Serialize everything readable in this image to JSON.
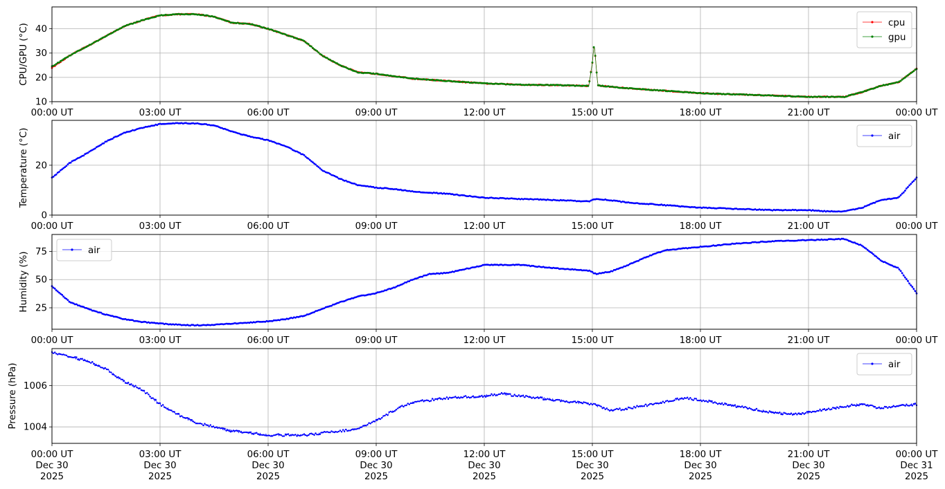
{
  "chart_data": [
    {
      "type": "line",
      "ylabel": "CPU/GPU (°C)",
      "ylim": [
        10,
        49
      ],
      "yticks": [
        10,
        20,
        30,
        40
      ],
      "xlim": [
        0,
        24
      ],
      "xticks": [
        0,
        3,
        6,
        9,
        12,
        15,
        18,
        21,
        24
      ],
      "xtick_labels": [
        "00:00 UT",
        "03:00 UT",
        "06:00 UT",
        "09:00 UT",
        "12:00 UT",
        "15:00 UT",
        "18:00 UT",
        "21:00 UT",
        "00:00 UT"
      ],
      "grid": true,
      "legend": "upper right",
      "series": [
        {
          "name": "cpu",
          "color": "#ff0000",
          "x": [
            0,
            0.5,
            1,
            1.5,
            2,
            2.5,
            3,
            3.5,
            4,
            4.5,
            5,
            5.5,
            6,
            6.5,
            7,
            7.5,
            8,
            8.5,
            9,
            9.5,
            10,
            11,
            12,
            13,
            14,
            14.9,
            15.0,
            15.05,
            15.15,
            15.25,
            16,
            17,
            18,
            19,
            20,
            21,
            21.5,
            22,
            22.5,
            23,
            23.5,
            24
          ],
          "y": [
            24,
            29,
            33,
            37,
            41,
            43.5,
            45.5,
            46,
            46,
            45,
            42.5,
            42,
            40,
            37.5,
            35,
            29,
            25,
            22,
            21.5,
            20.5,
            19.5,
            18.5,
            17.5,
            17,
            16.8,
            16.5,
            26,
            34,
            16.8,
            16.5,
            15.5,
            14.5,
            13.5,
            13,
            12.5,
            12,
            12,
            12,
            14,
            16.5,
            18,
            23.5
          ]
        },
        {
          "name": "gpu",
          "color": "#008000",
          "x": [
            0,
            0.5,
            1,
            1.5,
            2,
            2.5,
            3,
            3.5,
            4,
            4.5,
            5,
            5.5,
            6,
            6.5,
            7,
            7.5,
            8,
            8.5,
            9,
            9.5,
            10,
            11,
            12,
            13,
            14,
            14.9,
            15.0,
            15.05,
            15.15,
            15.25,
            16,
            17,
            18,
            19,
            20,
            21,
            21.5,
            22,
            22.5,
            23,
            23.5,
            24
          ],
          "y": [
            24.5,
            29,
            33,
            37,
            41,
            43.5,
            45.5,
            46,
            46,
            45,
            42.5,
            42,
            40,
            37.5,
            35,
            29,
            25,
            22,
            21.5,
            20.5,
            19.5,
            18.5,
            17.5,
            17,
            16.8,
            16.5,
            26,
            34,
            16.8,
            16.5,
            15.5,
            14.5,
            13.5,
            13,
            12.5,
            12,
            12,
            12,
            14,
            16.5,
            18,
            23.5
          ]
        }
      ]
    },
    {
      "type": "line",
      "ylabel": "Temperature (°C)",
      "ylim": [
        0,
        38
      ],
      "yticks": [
        0,
        20
      ],
      "xlim": [
        0,
        24
      ],
      "xticks": [
        0,
        3,
        6,
        9,
        12,
        15,
        18,
        21,
        24
      ],
      "xtick_labels": [
        "00:00 UT",
        "03:00 UT",
        "06:00 UT",
        "09:00 UT",
        "12:00 UT",
        "15:00 UT",
        "18:00 UT",
        "21:00 UT",
        "00:00 UT"
      ],
      "grid": true,
      "legend": "upper right",
      "series": [
        {
          "name": "air",
          "color": "#0000ff",
          "x": [
            0,
            0.5,
            1,
            1.5,
            2,
            2.5,
            3,
            3.5,
            4,
            4.5,
            5,
            5.5,
            6,
            6.5,
            7,
            7.5,
            8,
            8.5,
            9,
            9.5,
            10,
            11,
            12,
            13,
            14,
            14.9,
            15.1,
            15.5,
            16,
            17,
            18,
            19,
            20,
            21,
            21.5,
            22,
            22.5,
            23,
            23.5,
            24
          ],
          "y": [
            15,
            21,
            25,
            29.5,
            33,
            35,
            36.5,
            36.8,
            36.8,
            36,
            33.5,
            31.5,
            30,
            27.5,
            24,
            18,
            14.5,
            12,
            11,
            10.5,
            9.5,
            8.5,
            7,
            6.5,
            6,
            5.5,
            6.5,
            6,
            5,
            4,
            3,
            2.5,
            2,
            2,
            1.5,
            1.5,
            3,
            6,
            7,
            15
          ]
        }
      ]
    },
    {
      "type": "line",
      "ylabel": "Humidity (%)",
      "ylim": [
        6,
        90
      ],
      "yticks": [
        25,
        50,
        75
      ],
      "xlim": [
        0,
        24
      ],
      "xticks": [
        0,
        3,
        6,
        9,
        12,
        15,
        18,
        21,
        24
      ],
      "xtick_labels": [
        "00:00 UT",
        "03:00 UT",
        "06:00 UT",
        "09:00 UT",
        "12:00 UT",
        "15:00 UT",
        "18:00 UT",
        "21:00 UT",
        "00:00 UT"
      ],
      "grid": true,
      "legend": "upper left",
      "series": [
        {
          "name": "air",
          "color": "#0000ff",
          "x": [
            0,
            0.5,
            1,
            1.5,
            2,
            2.5,
            3,
            3.5,
            4,
            4.5,
            5,
            5.5,
            6,
            6.5,
            7,
            7.5,
            8,
            8.5,
            9,
            9.5,
            10,
            10.5,
            11,
            12,
            13,
            14,
            14.9,
            15.1,
            15.5,
            16,
            16.5,
            17,
            18,
            19,
            20,
            21,
            22,
            22.5,
            23,
            23.5,
            24
          ],
          "y": [
            44,
            30,
            24,
            19,
            15,
            12.5,
            11,
            10,
            9.5,
            10,
            11,
            12,
            13,
            15,
            18,
            24,
            30,
            35,
            38,
            43,
            50,
            55,
            56,
            63,
            63,
            60,
            58,
            55,
            57,
            63,
            70,
            76,
            79,
            82,
            84,
            85,
            86,
            80,
            67,
            60,
            38
          ]
        }
      ]
    },
    {
      "type": "line",
      "ylabel": "Pressure (hPa)",
      "ylim": [
        1003.2,
        1007.8
      ],
      "yticks": [
        1004,
        1006
      ],
      "xlim": [
        0,
        24
      ],
      "xticks": [
        0,
        3,
        6,
        9,
        12,
        15,
        18,
        21,
        24
      ],
      "xtick_labels": [
        [
          "00:00 UT",
          "Dec 30",
          "2025"
        ],
        [
          "03:00 UT",
          "Dec 30",
          "2025"
        ],
        [
          "06:00 UT",
          "Dec 30",
          "2025"
        ],
        [
          "09:00 UT",
          "Dec 30",
          "2025"
        ],
        [
          "12:00 UT",
          "Dec 30",
          "2025"
        ],
        [
          "15:00 UT",
          "Dec 30",
          "2025"
        ],
        [
          "18:00 UT",
          "Dec 30",
          "2025"
        ],
        [
          "21:00 UT",
          "Dec 30",
          "2025"
        ],
        [
          "00:00 UT",
          "Dec 31",
          "2025"
        ]
      ],
      "grid": true,
      "legend": "upper right",
      "series": [
        {
          "name": "air",
          "color": "#0000ff",
          "x": [
            0,
            0.5,
            1,
            1.5,
            2,
            2.5,
            3,
            3.5,
            4,
            4.5,
            5,
            5.5,
            6,
            6.5,
            7,
            7.5,
            8,
            8.5,
            9,
            9.5,
            10,
            11,
            12,
            12.5,
            13,
            14,
            15,
            15.5,
            16,
            17,
            17.5,
            18,
            19,
            20,
            20.5,
            21,
            22,
            22.5,
            23,
            24
          ],
          "y": [
            1007.6,
            1007.4,
            1007.2,
            1006.8,
            1006.2,
            1005.8,
            1005.1,
            1004.6,
            1004.2,
            1004.0,
            1003.8,
            1003.7,
            1003.6,
            1003.6,
            1003.6,
            1003.7,
            1003.8,
            1003.9,
            1004.3,
            1004.8,
            1005.2,
            1005.4,
            1005.5,
            1005.6,
            1005.5,
            1005.3,
            1005.1,
            1004.8,
            1004.9,
            1005.2,
            1005.4,
            1005.3,
            1005.0,
            1004.7,
            1004.6,
            1004.7,
            1005.0,
            1005.1,
            1004.9,
            1005.1
          ]
        }
      ]
    }
  ]
}
